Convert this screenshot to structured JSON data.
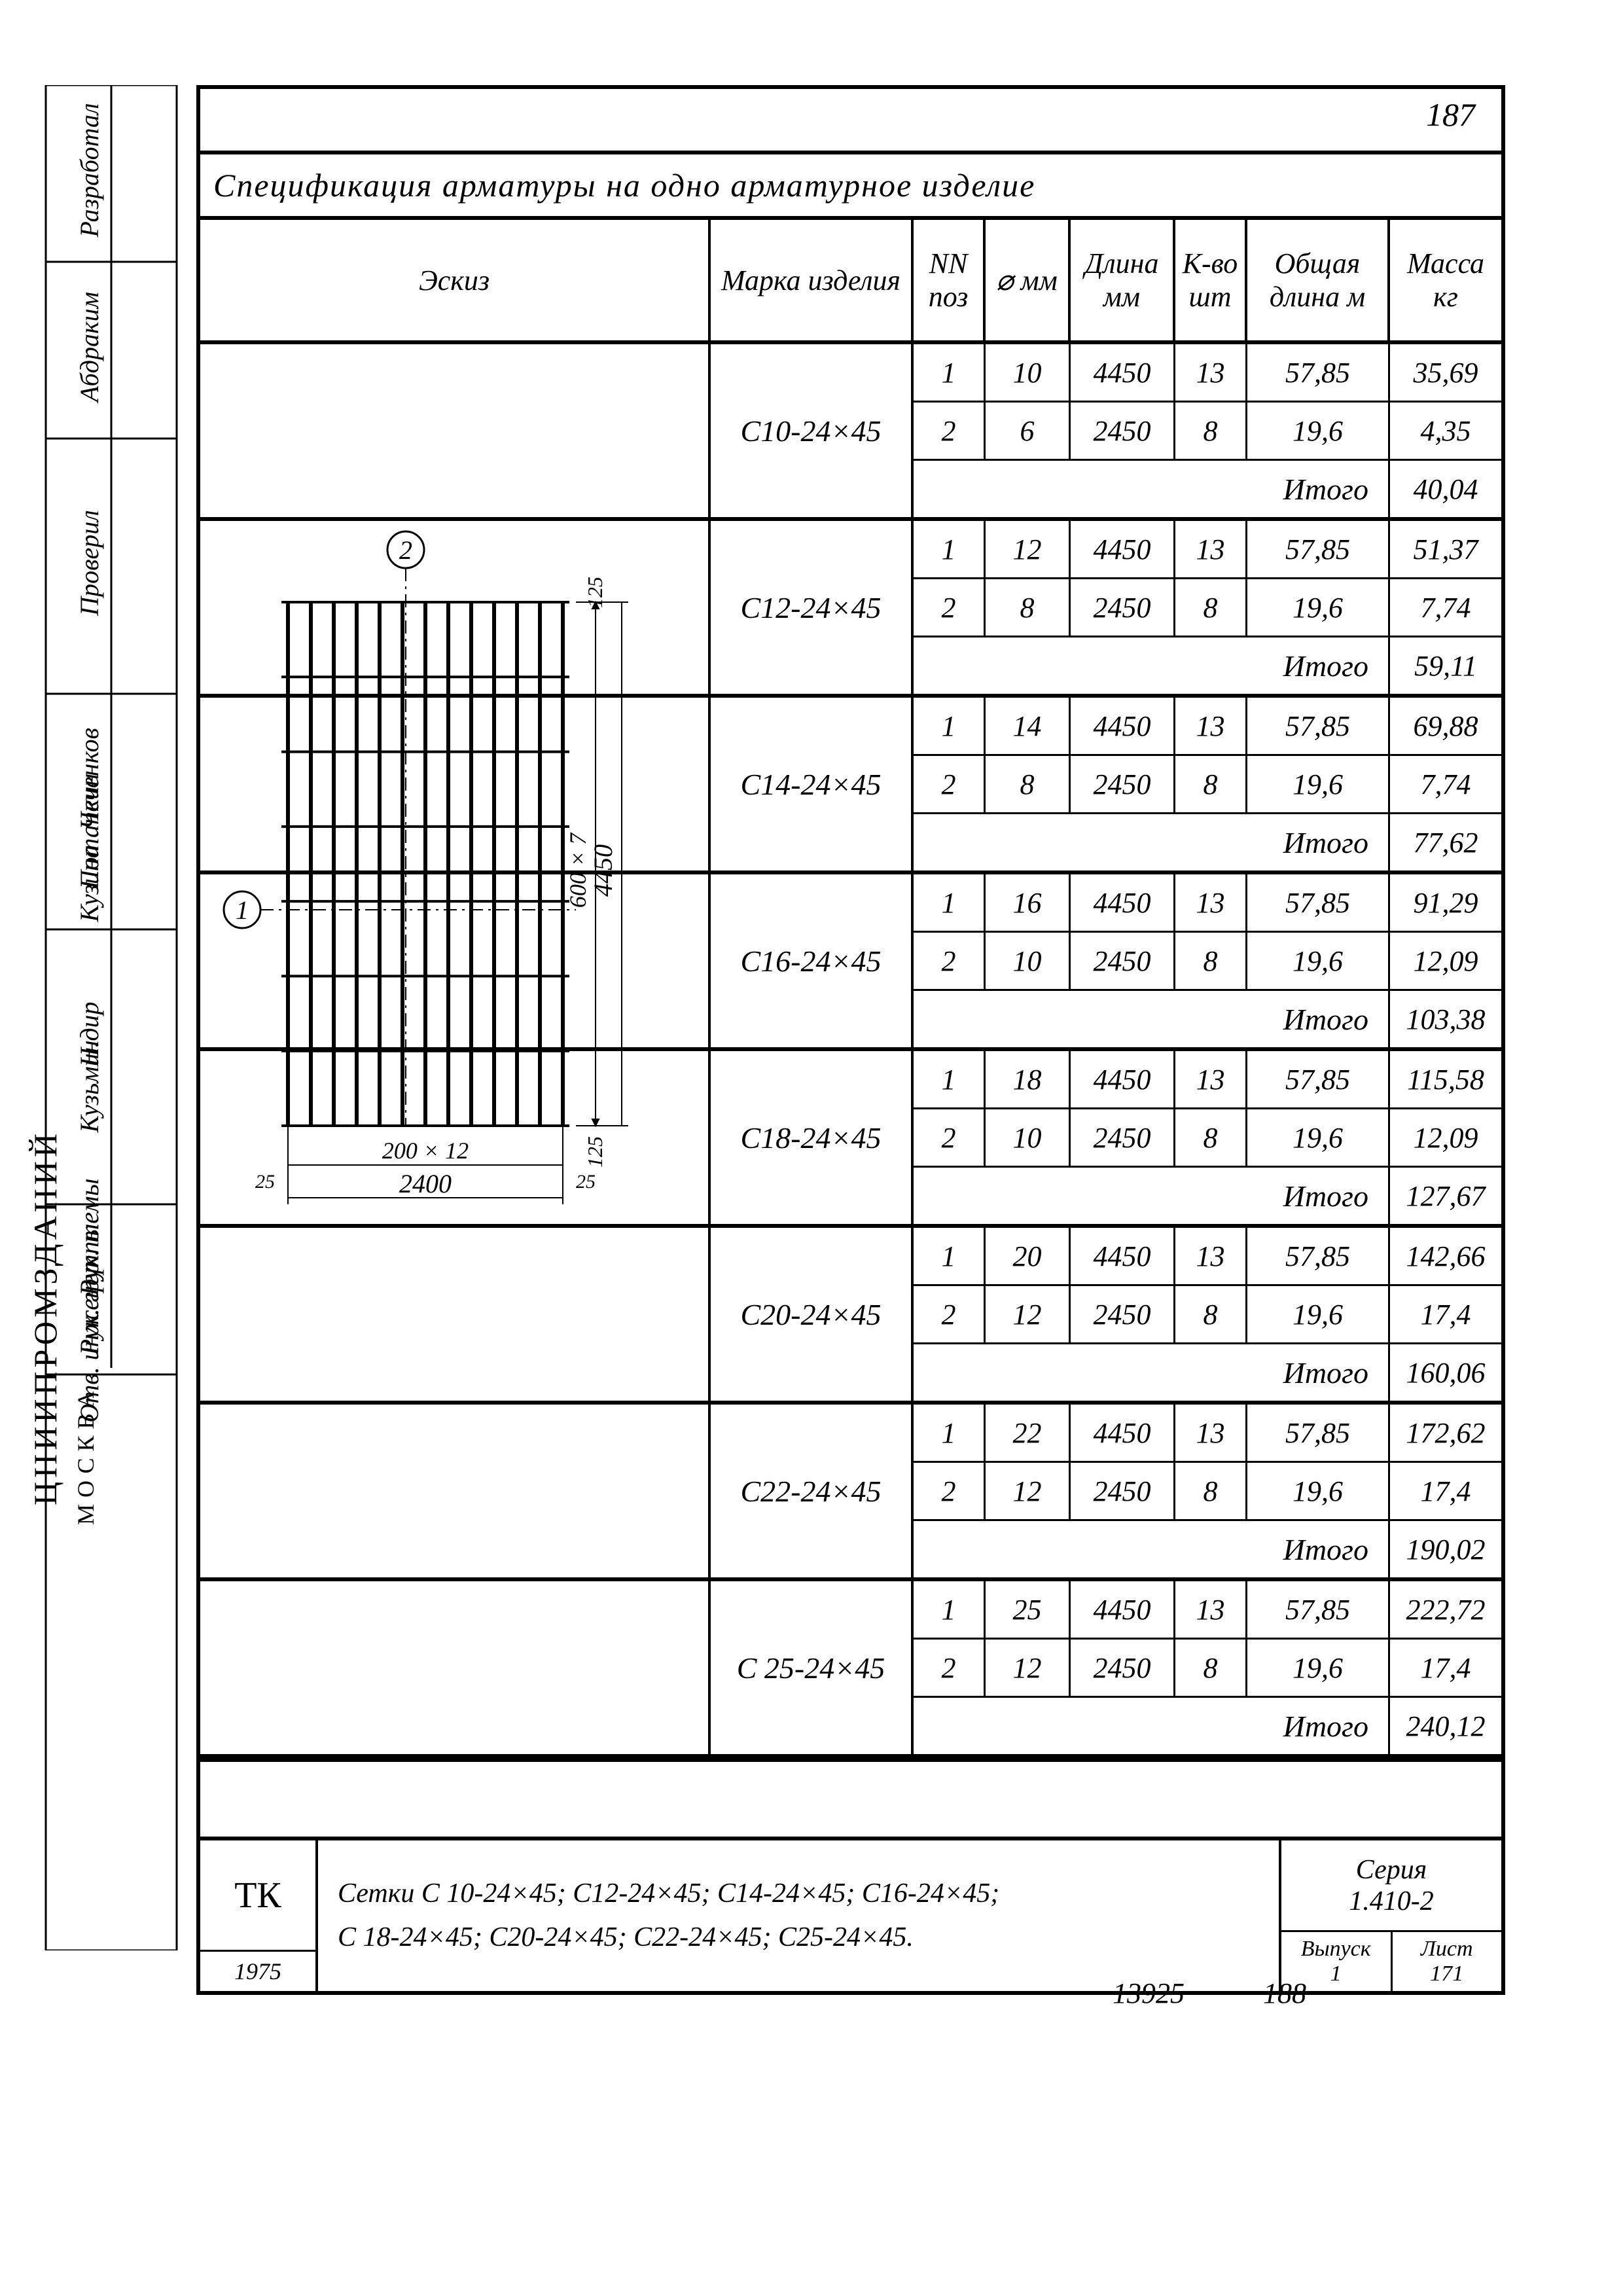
{
  "page_number": "187",
  "title": "Спецификация арматуры на одно арматурное изделие",
  "headers": {
    "sketch": "Эскиз",
    "mark": "Марка изделия",
    "nn": "NN поз",
    "diam": "⌀ мм",
    "length": "Длина мм",
    "qty": "К-во шт",
    "total_len": "Общая длина м",
    "mass": "Масса кг"
  },
  "subtotal_label": "Итого",
  "products": [
    {
      "mark": "С10-24×45",
      "rows": [
        {
          "nn": "1",
          "d": "10",
          "len": "4450",
          "qty": "13",
          "tot": "57,85",
          "mass": "35,69"
        },
        {
          "nn": "2",
          "d": "6",
          "len": "2450",
          "qty": "8",
          "tot": "19,6",
          "mass": "4,35"
        }
      ],
      "subtotal": "40,04"
    },
    {
      "mark": "С12-24×45",
      "rows": [
        {
          "nn": "1",
          "d": "12",
          "len": "4450",
          "qty": "13",
          "tot": "57,85",
          "mass": "51,37"
        },
        {
          "nn": "2",
          "d": "8",
          "len": "2450",
          "qty": "8",
          "tot": "19,6",
          "mass": "7,74"
        }
      ],
      "subtotal": "59,11"
    },
    {
      "mark": "С14-24×45",
      "rows": [
        {
          "nn": "1",
          "d": "14",
          "len": "4450",
          "qty": "13",
          "tot": "57,85",
          "mass": "69,88"
        },
        {
          "nn": "2",
          "d": "8",
          "len": "2450",
          "qty": "8",
          "tot": "19,6",
          "mass": "7,74"
        }
      ],
      "subtotal": "77,62"
    },
    {
      "mark": "С16-24×45",
      "rows": [
        {
          "nn": "1",
          "d": "16",
          "len": "4450",
          "qty": "13",
          "tot": "57,85",
          "mass": "91,29"
        },
        {
          "nn": "2",
          "d": "10",
          "len": "2450",
          "qty": "8",
          "tot": "19,6",
          "mass": "12,09"
        }
      ],
      "subtotal": "103,38"
    },
    {
      "mark": "С18-24×45",
      "rows": [
        {
          "nn": "1",
          "d": "18",
          "len": "4450",
          "qty": "13",
          "tot": "57,85",
          "mass": "115,58"
        },
        {
          "nn": "2",
          "d": "10",
          "len": "2450",
          "qty": "8",
          "tot": "19,6",
          "mass": "12,09"
        }
      ],
      "subtotal": "127,67"
    },
    {
      "mark": "С20-24×45",
      "rows": [
        {
          "nn": "1",
          "d": "20",
          "len": "4450",
          "qty": "13",
          "tot": "57,85",
          "mass": "142,66"
        },
        {
          "nn": "2",
          "d": "12",
          "len": "2450",
          "qty": "8",
          "tot": "19,6",
          "mass": "17,4"
        }
      ],
      "subtotal": "160,06"
    },
    {
      "mark": "С22-24×45",
      "rows": [
        {
          "nn": "1",
          "d": "22",
          "len": "4450",
          "qty": "13",
          "tot": "57,85",
          "mass": "172,62"
        },
        {
          "nn": "2",
          "d": "12",
          "len": "2450",
          "qty": "8",
          "tot": "19,6",
          "mass": "17,4"
        }
      ],
      "subtotal": "190,02"
    },
    {
      "mark": "С 25-24×45",
      "rows": [
        {
          "nn": "1",
          "d": "25",
          "len": "4450",
          "qty": "13",
          "tot": "57,85",
          "mass": "222,72"
        },
        {
          "nn": "2",
          "d": "12",
          "len": "2450",
          "qty": "8",
          "tot": "19,6",
          "mass": "17,4"
        }
      ],
      "subtotal": "240,12"
    }
  ],
  "sketch": {
    "vbars": 13,
    "hbars": 8,
    "dim_h_spacing": "200 × 12",
    "dim_h_total": "2400",
    "dim_h_edge": "25",
    "dim_v_spacing": "600 × 7",
    "dim_v_total": "4450",
    "dim_v_edge": "125",
    "axis2": "2",
    "axis1": "1"
  },
  "footer": {
    "tk": "ТК",
    "year": "1975",
    "line1": "Сетки С 10-24×45; С12-24×45; С14-24×45; С16-24×45;",
    "line2": "С 18-24×45; С20-24×45; С22-24×45; С25-24×45.",
    "series_label": "Серия",
    "series": "1.410-2",
    "issue_label": "Выпуск",
    "issue": "1",
    "sheet_label": "Лист",
    "sheet": "171"
  },
  "bottom": {
    "a": "13925",
    "b": "188"
  },
  "left_margin": {
    "org": "ЦНИИПРОМЗДАНИЙ",
    "city": "МОСКВА",
    "roles": [
      "Разработал",
      "Абдраким",
      "Проверил",
      "Чеченков",
      "Потапкин",
      "Кузина",
      "Н.дир",
      "Кузьмин",
      "Рук. темы",
      "Рук. группы",
      "Отв. инженер"
    ]
  },
  "style": {
    "line_color": "#000000",
    "bg_color": "#ffffff",
    "heavy_stroke": 6,
    "light_stroke": 3,
    "font_italic_size": 46,
    "font_family": "cursive"
  }
}
